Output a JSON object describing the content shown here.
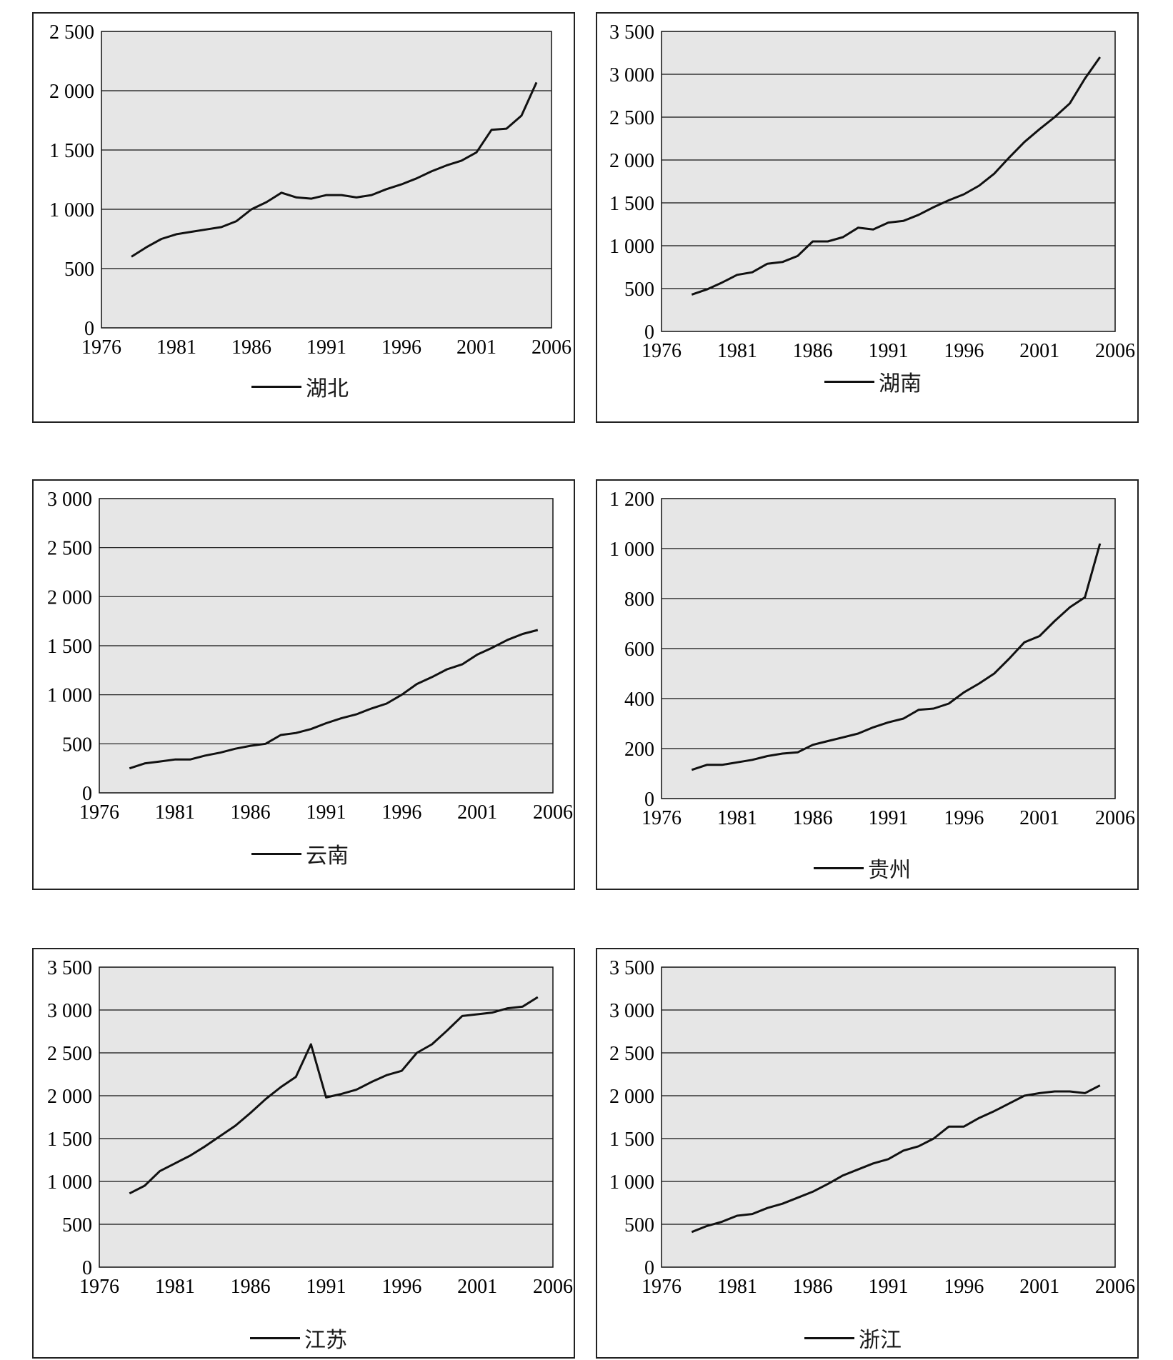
{
  "chart_data": [
    {
      "type": "line",
      "legend": [
        "湖北"
      ],
      "x": [
        1978,
        1979,
        1980,
        1981,
        1982,
        1983,
        1984,
        1985,
        1986,
        1987,
        1988,
        1989,
        1990,
        1991,
        1992,
        1993,
        1994,
        1995,
        1996,
        1997,
        1998,
        1999,
        2000,
        2001,
        2002,
        2003,
        2004,
        2005
      ],
      "series": [
        {
          "name": "湖北",
          "values": [
            600,
            680,
            750,
            790,
            810,
            830,
            850,
            900,
            1000,
            1060,
            1140,
            1100,
            1090,
            1120,
            1120,
            1100,
            1120,
            1170,
            1210,
            1260,
            1320,
            1370,
            1410,
            1480,
            1670,
            1680,
            1790,
            2070
          ]
        }
      ],
      "xticks": [
        "1976",
        "1981",
        "1986",
        "1991",
        "1996",
        "2001",
        "2006"
      ],
      "yticks": [
        "0",
        "500",
        "1 000",
        "1 500",
        "2 000",
        "2 500"
      ],
      "xlim": [
        1976,
        2006
      ],
      "ylim": [
        0,
        2500
      ],
      "grid": true,
      "legend_position": "bottom"
    },
    {
      "type": "line",
      "legend": [
        "湖南"
      ],
      "x": [
        1978,
        1979,
        1980,
        1981,
        1982,
        1983,
        1984,
        1985,
        1986,
        1987,
        1988,
        1989,
        1990,
        1991,
        1992,
        1993,
        1994,
        1995,
        1996,
        1997,
        1998,
        1999,
        2000,
        2001,
        2002,
        2003,
        2004,
        2005
      ],
      "series": [
        {
          "name": "湖南",
          "values": [
            430,
            490,
            570,
            660,
            690,
            790,
            810,
            880,
            1050,
            1050,
            1100,
            1210,
            1190,
            1270,
            1290,
            1360,
            1450,
            1530,
            1600,
            1700,
            1840,
            2030,
            2210,
            2360,
            2500,
            2660,
            2950,
            3200
          ]
        }
      ],
      "xticks": [
        "1976",
        "1981",
        "1986",
        "1991",
        "1996",
        "2001",
        "2006"
      ],
      "yticks": [
        "0",
        "500",
        "1 000",
        "1 500",
        "2 000",
        "2 500",
        "3 000",
        "3 500"
      ],
      "xlim": [
        1976,
        2006
      ],
      "ylim": [
        0,
        3500
      ],
      "grid": true,
      "legend_position": "bottom"
    },
    {
      "type": "line",
      "legend": [
        "云南"
      ],
      "x": [
        1978,
        1979,
        1980,
        1981,
        1982,
        1983,
        1984,
        1985,
        1986,
        1987,
        1988,
        1989,
        1990,
        1991,
        1992,
        1993,
        1994,
        1995,
        1996,
        1997,
        1998,
        1999,
        2000,
        2001,
        2002,
        2003,
        2004,
        2005
      ],
      "series": [
        {
          "name": "云南",
          "values": [
            250,
            300,
            320,
            340,
            340,
            380,
            410,
            450,
            480,
            500,
            590,
            610,
            650,
            710,
            760,
            800,
            860,
            910,
            1000,
            1110,
            1180,
            1260,
            1310,
            1410,
            1480,
            1560,
            1620,
            1660
          ]
        }
      ],
      "xticks": [
        "1976",
        "1981",
        "1986",
        "1991",
        "1996",
        "2001",
        "2006"
      ],
      "yticks": [
        "0",
        "500",
        "1 000",
        "1 500",
        "2 000",
        "2 500",
        "3 000"
      ],
      "xlim": [
        1976,
        2006
      ],
      "ylim": [
        0,
        3000
      ],
      "grid": true,
      "legend_position": "bottom"
    },
    {
      "type": "line",
      "legend": [
        "贵州"
      ],
      "x": [
        1978,
        1979,
        1980,
        1981,
        1982,
        1983,
        1984,
        1985,
        1986,
        1987,
        1988,
        1989,
        1990,
        1991,
        1992,
        1993,
        1994,
        1995,
        1996,
        1997,
        1998,
        1999,
        2000,
        2001,
        2002,
        2003,
        2004,
        2005
      ],
      "series": [
        {
          "name": "贵州",
          "values": [
            115,
            135,
            135,
            145,
            155,
            170,
            180,
            185,
            215,
            230,
            245,
            260,
            285,
            305,
            320,
            355,
            360,
            380,
            425,
            460,
            500,
            560,
            625,
            650,
            710,
            765,
            805,
            1020
          ]
        }
      ],
      "xticks": [
        "1976",
        "1981",
        "1986",
        "1991",
        "1996",
        "2001",
        "2006"
      ],
      "yticks": [
        "0",
        "200",
        "400",
        "600",
        "800",
        "1 000",
        "1 200"
      ],
      "xlim": [
        1976,
        2006
      ],
      "ylim": [
        0,
        1200
      ],
      "grid": true,
      "legend_position": "bottom"
    },
    {
      "type": "line",
      "legend": [
        "江苏"
      ],
      "x": [
        1978,
        1979,
        1980,
        1981,
        1982,
        1983,
        1984,
        1985,
        1986,
        1987,
        1988,
        1989,
        1990,
        1991,
        1992,
        1993,
        1994,
        1995,
        1996,
        1997,
        1998,
        1999,
        2000,
        2001,
        2002,
        2003,
        2004,
        2005
      ],
      "series": [
        {
          "name": "江苏",
          "values": [
            860,
            950,
            1120,
            1210,
            1300,
            1410,
            1530,
            1650,
            1800,
            1960,
            2100,
            2220,
            2600,
            1980,
            2020,
            2070,
            2160,
            2240,
            2290,
            2500,
            2600,
            2760,
            2930,
            2950,
            2970,
            3020,
            3040,
            3150
          ]
        }
      ],
      "xticks": [
        "1976",
        "1981",
        "1986",
        "1991",
        "1996",
        "2001",
        "2006"
      ],
      "yticks": [
        "0",
        "500",
        "1 000",
        "1 500",
        "2 000",
        "2 500",
        "3 000",
        "3 500"
      ],
      "xlim": [
        1976,
        2006
      ],
      "ylim": [
        0,
        3500
      ],
      "grid": true,
      "legend_position": "bottom"
    },
    {
      "type": "line",
      "legend": [
        "浙江"
      ],
      "x": [
        1978,
        1979,
        1980,
        1981,
        1982,
        1983,
        1984,
        1985,
        1986,
        1987,
        1988,
        1989,
        1990,
        1991,
        1992,
        1993,
        1994,
        1995,
        1996,
        1997,
        1998,
        1999,
        2000,
        2001,
        2002,
        2003,
        2004,
        2005
      ],
      "series": [
        {
          "name": "浙江",
          "values": [
            410,
            480,
            530,
            600,
            620,
            690,
            740,
            810,
            880,
            970,
            1070,
            1140,
            1210,
            1260,
            1360,
            1410,
            1500,
            1640,
            1640,
            1740,
            1820,
            1910,
            2000,
            2030,
            2050,
            2050,
            2030,
            2120
          ]
        }
      ],
      "xticks": [
        "1976",
        "1981",
        "1986",
        "1991",
        "1996",
        "2001",
        "2006"
      ],
      "yticks": [
        "0",
        "500",
        "1 000",
        "1 500",
        "2 000",
        "2 500",
        "3 000",
        "3 500"
      ],
      "xlim": [
        1976,
        2006
      ],
      "ylim": [
        0,
        3500
      ],
      "grid": true,
      "legend_position": "bottom"
    }
  ],
  "colors": {
    "plot_background": "#e6e6e6",
    "line": "#111111",
    "grid": "#111111"
  }
}
